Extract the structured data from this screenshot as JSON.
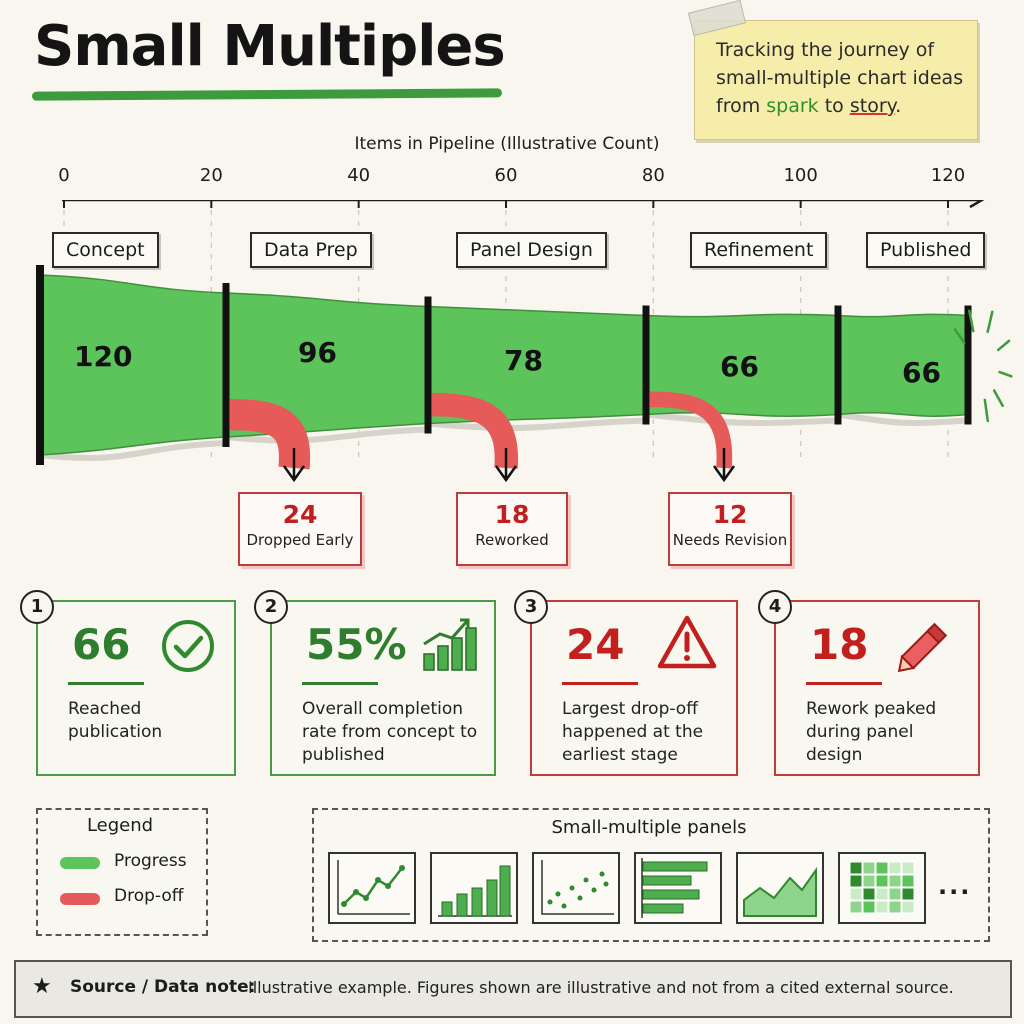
{
  "title": "Small Multiples",
  "note": {
    "line1": "Tracking the journey of",
    "line2": "small-multiple chart ideas",
    "from": "from",
    "spark": "spark",
    "to": "to",
    "story": "story",
    "period": "."
  },
  "chart_data": {
    "type": "funnel",
    "xlabel": "Items in Pipeline (Illustrative Count)",
    "xlim": [
      0,
      120
    ],
    "ticks": [
      "0",
      "20",
      "40",
      "60",
      "80",
      "100",
      "120"
    ],
    "stages": [
      {
        "name": "Concept",
        "value": 120
      },
      {
        "name": "Data Prep",
        "value": 96
      },
      {
        "name": "Panel Design",
        "value": 78
      },
      {
        "name": "Refinement",
        "value": 66
      },
      {
        "name": "Published",
        "value": 66
      }
    ],
    "dropoffs": [
      {
        "value": 24,
        "label": "Dropped Early"
      },
      {
        "value": 18,
        "label": "Reworked"
      },
      {
        "value": 12,
        "label": "Needs Revision"
      }
    ],
    "colors": {
      "progress": "#5cc45a",
      "dropoff": "#e65a5a"
    }
  },
  "cards": [
    {
      "num": "1",
      "value": "66",
      "text": "Reached publication",
      "icon": "check-circle-icon",
      "tone": "green"
    },
    {
      "num": "2",
      "value": "55%",
      "text": "Overall completion rate from concept to published",
      "icon": "bar-chart-up-icon",
      "tone": "green"
    },
    {
      "num": "3",
      "value": "24",
      "text": "Largest drop-off happened at the earliest stage",
      "icon": "warning-icon",
      "tone": "red"
    },
    {
      "num": "4",
      "value": "18",
      "text": "Rework peaked during panel design",
      "icon": "pencil-icon",
      "tone": "red"
    }
  ],
  "legend": {
    "title": "Legend",
    "items": [
      {
        "label": "Progress",
        "color": "#5cc45a"
      },
      {
        "label": "Drop-off",
        "color": "#e65a5a"
      }
    ]
  },
  "panels": {
    "title": "Small-multiple panels",
    "items": [
      "line-chart-icon",
      "bar-chart-icon",
      "scatter-chart-icon",
      "horizontal-bar-chart-icon",
      "area-chart-icon",
      "heatmap-icon"
    ],
    "more": "..."
  },
  "source": {
    "label": "Source / Data note:",
    "text": "Illustrative example.  Figures shown are illustrative and not from a cited external source."
  }
}
